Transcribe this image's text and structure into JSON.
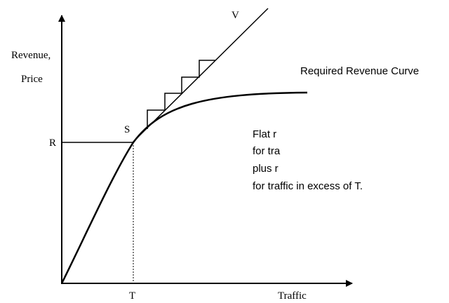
{
  "labels": {
    "v": "V",
    "y_axis": [
      "Revenue,",
      "Price"
    ],
    "curve": "Required Revenue Curve",
    "s": "S",
    "r": "R",
    "t": "T",
    "x_axis": "Traffic"
  },
  "note": [
    "Flat r",
    "for tra",
    "plus r",
    "for traffic in excess of T."
  ]
}
